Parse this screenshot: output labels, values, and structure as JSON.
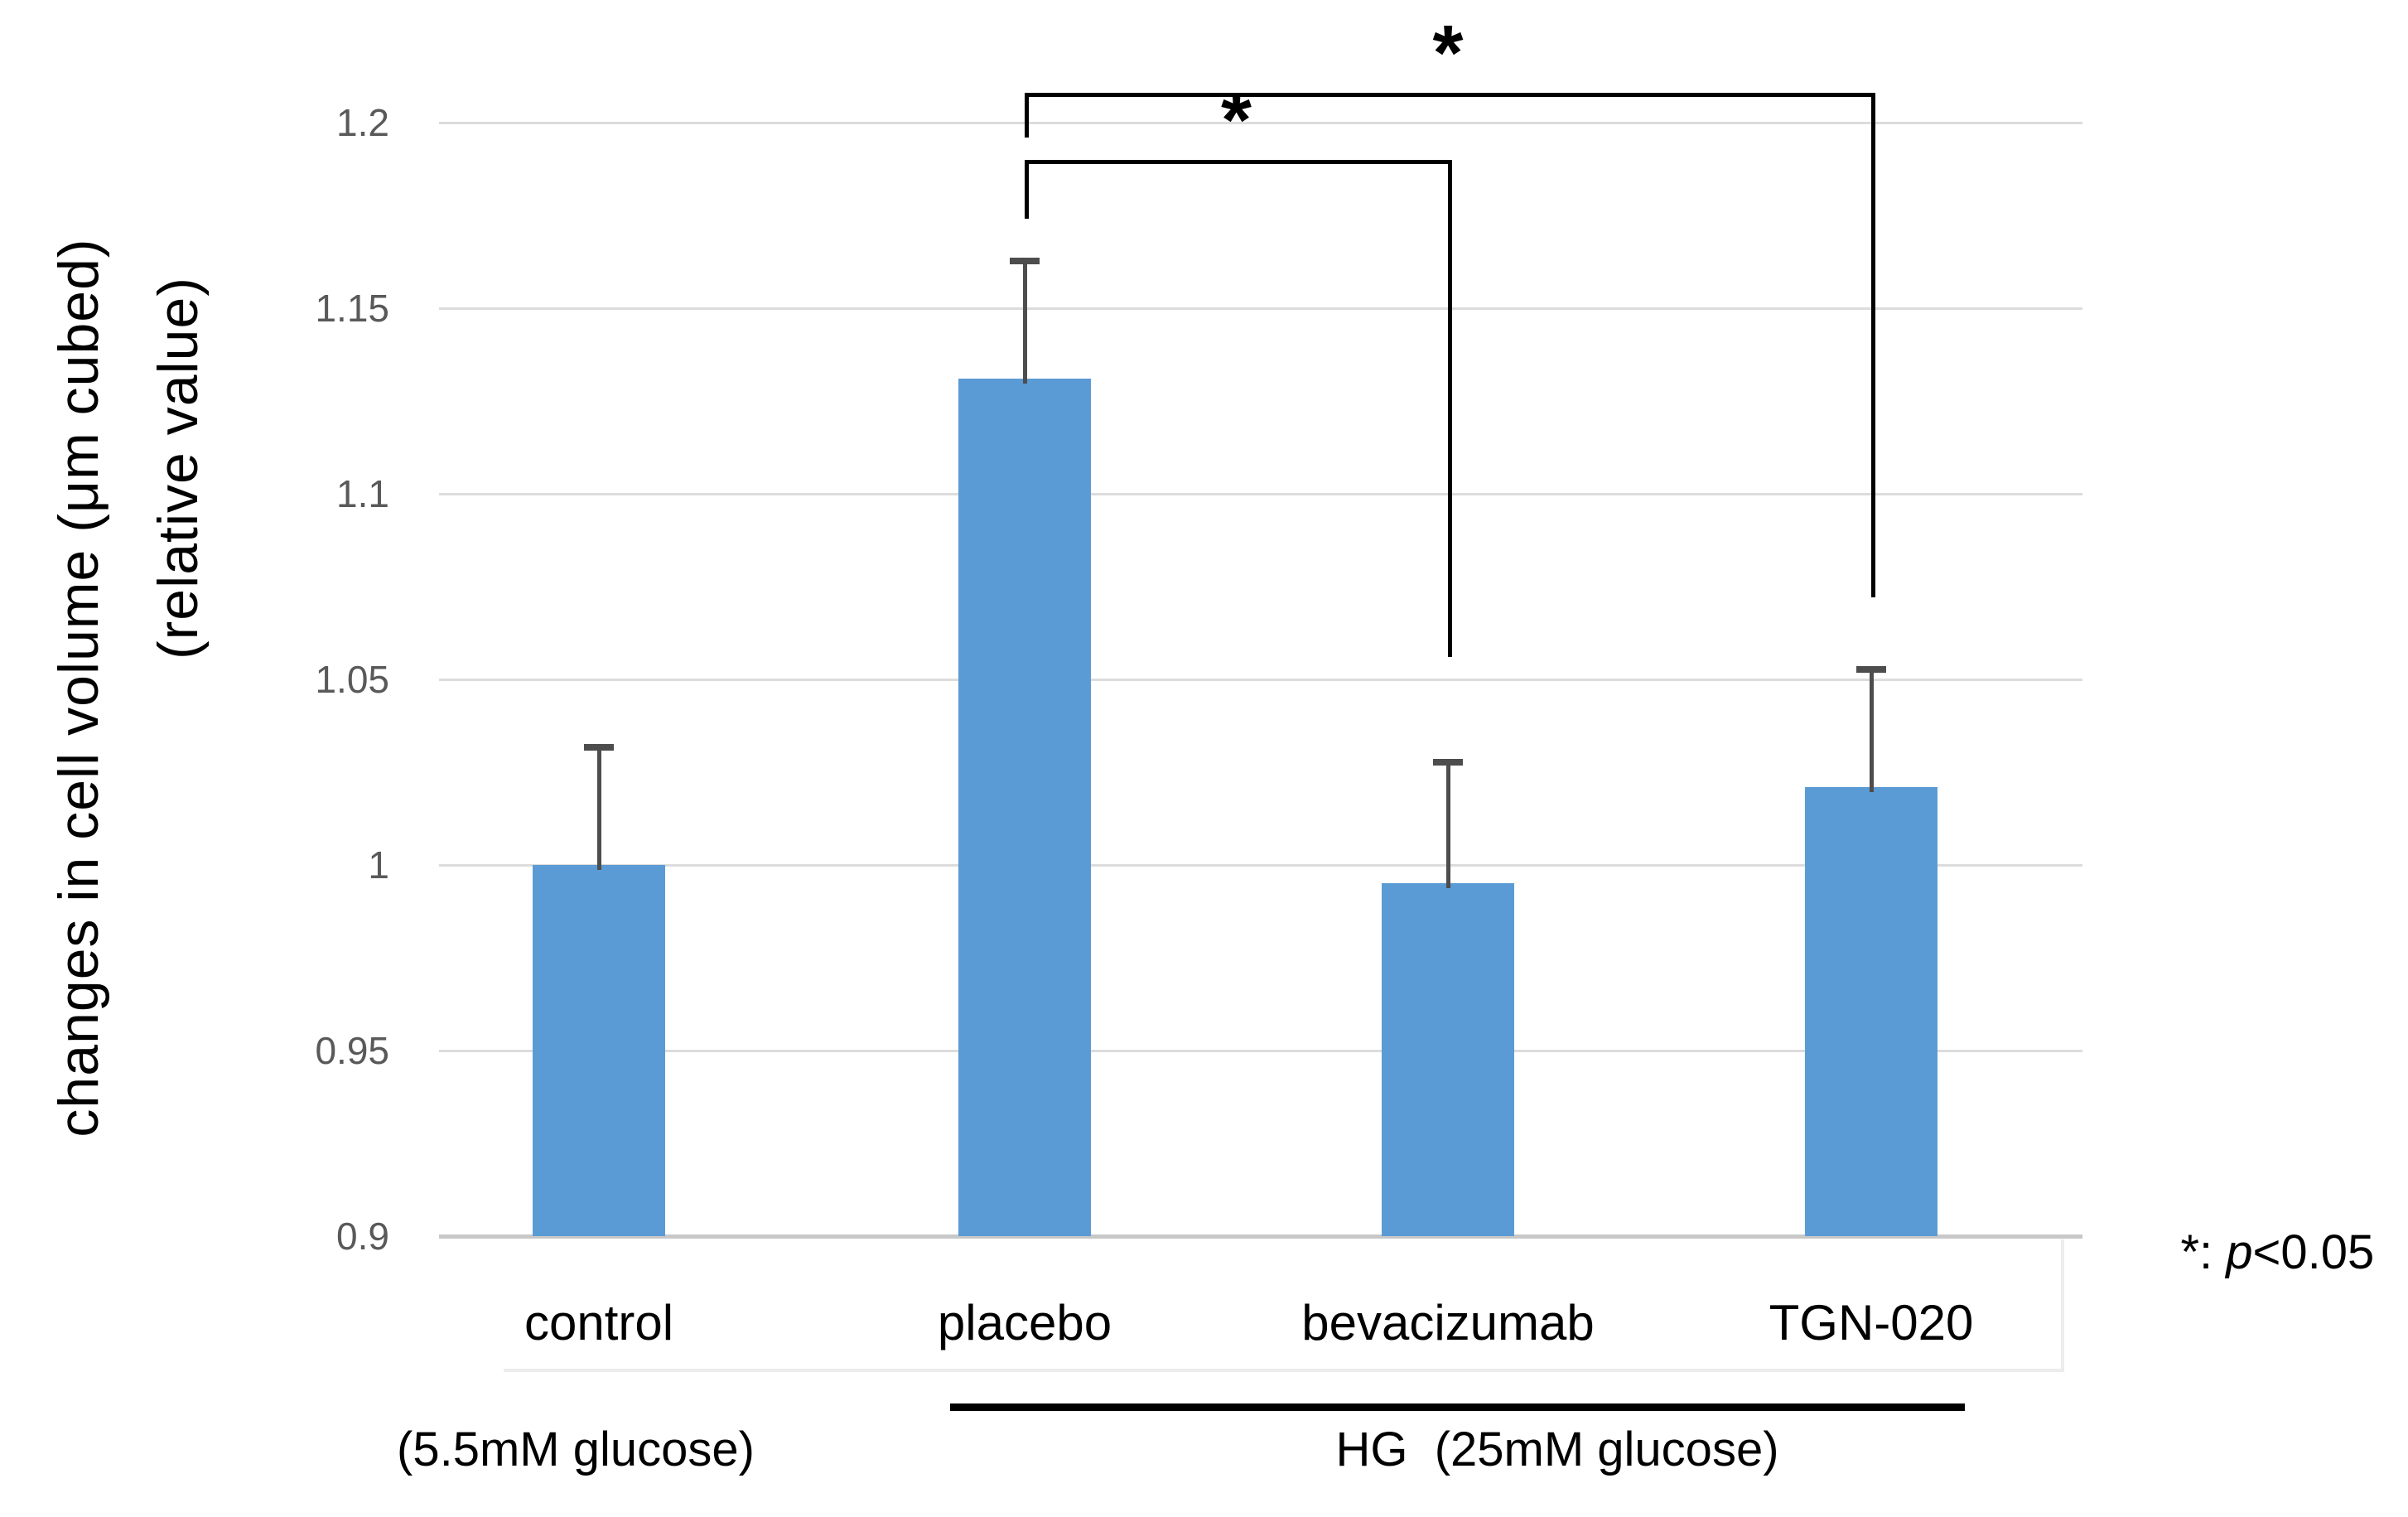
{
  "chart_data": {
    "type": "bar",
    "title": "",
    "ylabel_line1": "changes in cell volume (μm cubed)",
    "ylabel_line2": "(relative value)",
    "xlabel": "",
    "categories": [
      "control",
      "placebo",
      "bevacizumab",
      "TGN-020"
    ],
    "values": [
      1.0,
      1.131,
      0.995,
      1.021
    ],
    "error_upper": [
      1.032,
      1.163,
      1.028,
      1.053
    ],
    "ylim": [
      0.9,
      1.2
    ],
    "yticks": [
      0.9,
      0.95,
      1.0,
      1.05,
      1.1,
      1.15,
      1.2
    ],
    "ytick_labels": [
      "0.9",
      "0.95",
      "1",
      "1.05",
      "1.1",
      "1.15",
      "1.2"
    ],
    "grid": true,
    "legend_position": "none",
    "bar_color": "#5B9BD5",
    "error_bar_color": "#4d4d4d",
    "gridline_color": "#dcdcdc",
    "axis_line_color": "#c8c8c8",
    "tick_label_color": "#595959",
    "significance_brackets": [
      {
        "from": "placebo",
        "to": "bevacizumab",
        "label": "*",
        "y_value": 1.19,
        "left_drop_value": 1.174,
        "right_drop_value": 1.056
      },
      {
        "from": "placebo",
        "to": "TGN-020",
        "label": "*",
        "y_value": 1.208,
        "left_drop_value": 1.196,
        "right_drop_value": 1.072
      }
    ],
    "group_annotations": [
      {
        "label": "(5.5mM glucose)",
        "under": "control",
        "line": false
      },
      {
        "label": "HG  (25mM glucose)",
        "under": "placebo to TGN-020",
        "line": true
      }
    ],
    "note": {
      "star": "*",
      "separator": ": ",
      "p": "p",
      "rest": "<0.05"
    }
  }
}
